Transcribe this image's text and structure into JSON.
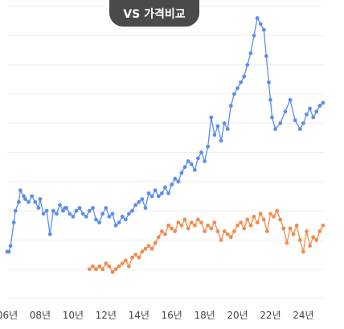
{
  "header": {
    "compare_label": "VS 가격비교"
  },
  "chart_data": {
    "type": "line",
    "title": "",
    "xlabel": "",
    "ylabel": "",
    "xlim": [
      2006,
      2025.3
    ],
    "ylim": [
      0,
      10
    ],
    "grid": true,
    "legend": "none",
    "x_ticks": [
      {
        "x": 2006,
        "label": "06년"
      },
      {
        "x": 2008,
        "label": "08년"
      },
      {
        "x": 2010,
        "label": "10년"
      },
      {
        "x": 2012,
        "label": "12년"
      },
      {
        "x": 2014,
        "label": "14년"
      },
      {
        "x": 2016,
        "label": "16년"
      },
      {
        "x": 2018,
        "label": "18년"
      },
      {
        "x": 2020,
        "label": "20년"
      },
      {
        "x": 2022,
        "label": "22년"
      },
      {
        "x": 2024,
        "label": "24년"
      }
    ],
    "series": [
      {
        "color": "#5b8def",
        "x": [
          2006.0,
          2006.1,
          2006.2,
          2006.4,
          2006.5,
          2006.7,
          2006.8,
          2007.0,
          2007.1,
          2007.3,
          2007.5,
          2007.7,
          2007.9,
          2008.0,
          2008.2,
          2008.4,
          2008.6,
          2008.8,
          2009.0,
          2009.2,
          2009.4,
          2009.5,
          2009.6,
          2009.8,
          2010.0,
          2010.2,
          2010.4,
          2010.6,
          2010.8,
          2011.0,
          2011.2,
          2011.4,
          2011.6,
          2011.8,
          2012.0,
          2012.2,
          2012.4,
          2012.6,
          2012.8,
          2013.0,
          2013.2,
          2013.4,
          2013.6,
          2013.8,
          2014.0,
          2014.2,
          2014.4,
          2014.6,
          2014.8,
          2015.0,
          2015.2,
          2015.4,
          2015.6,
          2015.8,
          2016.0,
          2016.2,
          2016.4,
          2016.6,
          2016.8,
          2017.0,
          2017.2,
          2017.4,
          2017.6,
          2017.8,
          2018.0,
          2018.2,
          2018.4,
          2018.6,
          2018.8,
          2019.0,
          2019.2,
          2019.4,
          2019.6,
          2019.8,
          2020.0,
          2020.2,
          2020.4,
          2020.6,
          2020.8,
          2021.0,
          2021.2,
          2021.4,
          2021.6,
          2021.75,
          2021.9,
          2022.0,
          2022.1,
          2022.3,
          2022.6,
          2022.9,
          2023.2,
          2023.5,
          2023.8,
          2024.0,
          2024.2,
          2024.4,
          2024.6,
          2024.8,
          2025.0,
          2025.2
        ],
        "values": [
          1.6,
          1.6,
          1.8,
          2.6,
          3.0,
          3.3,
          3.7,
          3.5,
          3.4,
          3.3,
          3.5,
          3.3,
          3.1,
          3.4,
          2.9,
          3.0,
          2.2,
          3.0,
          2.9,
          3.2,
          3.0,
          3.1,
          3.1,
          2.9,
          2.8,
          3.0,
          3.1,
          2.9,
          2.8,
          3.0,
          3.1,
          2.7,
          2.6,
          2.9,
          3.1,
          2.8,
          2.9,
          2.5,
          2.6,
          2.8,
          2.7,
          2.9,
          3.0,
          3.2,
          3.3,
          3.4,
          3.1,
          3.6,
          3.5,
          3.7,
          3.5,
          3.6,
          3.8,
          3.6,
          3.9,
          4.1,
          4.0,
          4.3,
          4.5,
          4.7,
          4.6,
          4.4,
          4.8,
          5.0,
          4.7,
          5.2,
          6.2,
          5.6,
          5.9,
          5.4,
          6.0,
          5.8,
          6.6,
          7.0,
          7.2,
          7.4,
          7.6,
          8.0,
          8.4,
          9.0,
          9.6,
          9.4,
          9.2,
          8.3,
          7.4,
          6.8,
          6.2,
          5.8,
          6.0,
          6.4,
          6.8,
          6.1,
          5.8,
          6.0,
          6.3,
          6.5,
          6.2,
          6.4,
          6.6,
          6.7
        ],
        "values_note": ""
      },
      {
        "color": "#f28c4e",
        "x": [
          2011.0,
          2011.2,
          2011.4,
          2011.6,
          2011.8,
          2012.0,
          2012.2,
          2012.4,
          2012.6,
          2012.8,
          2013.0,
          2013.2,
          2013.4,
          2013.6,
          2013.8,
          2014.0,
          2014.2,
          2014.4,
          2014.6,
          2014.8,
          2015.0,
          2015.2,
          2015.4,
          2015.6,
          2015.8,
          2016.0,
          2016.2,
          2016.4,
          2016.6,
          2016.8,
          2017.0,
          2017.2,
          2017.4,
          2017.6,
          2017.8,
          2018.0,
          2018.2,
          2018.4,
          2018.6,
          2018.8,
          2019.0,
          2019.2,
          2019.4,
          2019.6,
          2019.8,
          2020.0,
          2020.2,
          2020.4,
          2020.6,
          2020.8,
          2021.0,
          2021.2,
          2021.4,
          2021.6,
          2021.8,
          2022.0,
          2022.2,
          2022.4,
          2022.6,
          2022.8,
          2023.0,
          2023.2,
          2023.4,
          2023.6,
          2023.8,
          2024.0,
          2024.2,
          2024.4,
          2024.6,
          2024.8,
          2025.0,
          2025.2
        ],
        "values": [
          1.0,
          1.1,
          1.0,
          1.1,
          1.0,
          1.2,
          1.1,
          0.9,
          1.0,
          1.1,
          1.2,
          1.3,
          1.1,
          1.4,
          1.5,
          1.4,
          1.6,
          1.7,
          1.8,
          1.7,
          1.9,
          2.1,
          2.3,
          2.2,
          2.5,
          2.4,
          2.3,
          2.6,
          2.5,
          2.7,
          2.4,
          2.6,
          2.5,
          2.7,
          2.6,
          2.3,
          2.5,
          2.4,
          2.6,
          2.3,
          2.0,
          2.3,
          2.2,
          2.1,
          2.3,
          2.5,
          2.6,
          2.4,
          2.7,
          2.5,
          2.8,
          2.6,
          2.9,
          2.7,
          2.3,
          2.9,
          2.8,
          3.0,
          2.7,
          2.4,
          1.9,
          2.4,
          2.2,
          2.5,
          2.0,
          1.6,
          2.3,
          1.8,
          2.1,
          2.0,
          2.3,
          2.5
        ],
        "values_note": ""
      }
    ]
  }
}
